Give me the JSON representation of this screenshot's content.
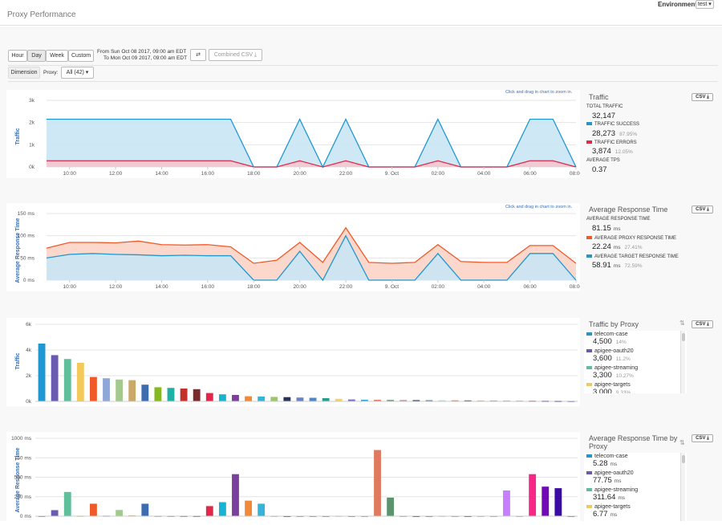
{
  "header": {
    "title": "Proxy Performance",
    "env_label": "Environment",
    "env_value": "test ▾"
  },
  "toolbar": {
    "ranges": [
      "Hour",
      "Day",
      "Week",
      "Custom"
    ],
    "from": "From  Sun Oct 08 2017, 09:00 am EDT",
    "to": "To Mon Oct 09 2017, 09:00 am EDT",
    "swap_icon": "⇄",
    "csv_combined": "Combined CSV ⤓",
    "dimension": "Dimension",
    "proxy_label": "Proxy:",
    "proxy_value": "All (42) ▾"
  },
  "hint": "Click and drag in chart to zoom in.",
  "time_ticks": [
    "10:00",
    "12:00",
    "14:00",
    "16:00",
    "18:00",
    "20:00",
    "22:00",
    "9. Oct",
    "02:00",
    "04:00",
    "06:00",
    "08:00"
  ],
  "traffic": {
    "ylabel": "Traffic",
    "yticks": [
      "3k",
      "2k",
      "1k",
      "0k"
    ],
    "title": "Traffic",
    "csv": "CSV ⤓",
    "total_label": "TOTAL TRAFFIC",
    "total": "32,147",
    "success_label": "TRAFFIC SUCCESS",
    "success": "28,273",
    "success_pct": "87.95%",
    "errors_label": "TRAFFIC ERRORS",
    "errors": "3,874",
    "errors_pct": "12.05%",
    "tps_label": "AVERAGE TPS",
    "tps": "0.37"
  },
  "response": {
    "ylabel": "Average Response Time",
    "yticks": [
      "150 ms",
      "100 ms",
      "50 ms",
      "0 ms"
    ],
    "title": "Average Response Time",
    "csv": "CSV ⤓",
    "avg_label": "AVERAGE RESPONSE TIME",
    "avg": "81.15",
    "avg_unit": "ms",
    "proxy_label": "AVERAGE PROXY RESPONSE TIME",
    "proxy": "22.24",
    "proxy_unit": "ms",
    "proxy_pct": "27.41%",
    "target_label": "AVERAGE TARGET RESPONSE TIME",
    "target": "58.91",
    "target_unit": "ms",
    "target_pct": "72.59%"
  },
  "by_proxy": {
    "ylabel": "Traffic",
    "yticks": [
      "6k",
      "4k",
      "2k",
      "0k"
    ],
    "title": "Traffic by Proxy",
    "csv": "CSV ⤓",
    "items": [
      {
        "name": "telecom-case",
        "value": "4,500",
        "pct": "14%"
      },
      {
        "name": "apigee-oauth20",
        "value": "3,600",
        "pct": "11.2%"
      },
      {
        "name": "apigee-streaming",
        "value": "3,300",
        "pct": "10.27%"
      },
      {
        "name": "apigee-targets",
        "value": "3,000",
        "pct": "9.33%"
      }
    ]
  },
  "rt_by_proxy": {
    "ylabel": "Average Response Time",
    "yticks": [
      "1000 ms",
      "750 ms",
      "500 ms",
      "250 ms",
      "0 ms"
    ],
    "title": "Average Response Time by Proxy",
    "csv": "CSV ⤓",
    "items": [
      {
        "name": "telecom-case",
        "value": "5.28",
        "unit": "ms"
      },
      {
        "name": "apigee-oauth20",
        "value": "77.75",
        "unit": "ms"
      },
      {
        "name": "apigee-streaming",
        "value": "311.64",
        "unit": "ms"
      },
      {
        "name": "apigee-targets",
        "value": "6.77",
        "unit": "ms"
      }
    ]
  },
  "colors": {
    "success": "#1f97d3",
    "error": "#e0294a",
    "proxy": "#f05a28",
    "target": "#1f97d3",
    "accent": "#3a6eb5"
  },
  "chart_data": [
    {
      "type": "area",
      "title": "Traffic",
      "ylabel": "Traffic",
      "ylim": [
        0,
        3000
      ],
      "x": [
        "09:00",
        "10:00",
        "11:00",
        "12:00",
        "13:00",
        "14:00",
        "15:00",
        "16:00",
        "17:00",
        "18:00",
        "19:00",
        "20:00",
        "21:00",
        "22:00",
        "23:00",
        "00:00",
        "01:00",
        "02:00",
        "03:00",
        "04:00",
        "05:00",
        "06:00",
        "07:00",
        "08:00"
      ],
      "series": [
        {
          "name": "TRAFFIC SUCCESS",
          "values": [
            2150,
            2150,
            2150,
            2150,
            2150,
            2150,
            2150,
            2150,
            2150,
            0,
            0,
            2150,
            0,
            2150,
            0,
            0,
            0,
            2150,
            0,
            0,
            0,
            2150,
            2150,
            0
          ]
        },
        {
          "name": "TRAFFIC ERRORS",
          "values": [
            280,
            280,
            280,
            280,
            280,
            280,
            280,
            280,
            280,
            0,
            0,
            280,
            0,
            280,
            0,
            0,
            0,
            280,
            0,
            0,
            0,
            280,
            280,
            0
          ]
        }
      ]
    },
    {
      "type": "area",
      "title": "Average Response Time",
      "ylabel": "Average Response Time",
      "ylim": [
        0,
        150
      ],
      "x": [
        "09:00",
        "10:00",
        "11:00",
        "12:00",
        "13:00",
        "14:00",
        "15:00",
        "16:00",
        "17:00",
        "18:00",
        "19:00",
        "20:00",
        "21:00",
        "22:00",
        "23:00",
        "00:00",
        "01:00",
        "02:00",
        "03:00",
        "04:00",
        "05:00",
        "06:00",
        "07:00",
        "08:00"
      ],
      "series": [
        {
          "name": "AVERAGE PROXY RESPONSE TIME",
          "values": [
            72,
            85,
            85,
            84,
            88,
            80,
            79,
            80,
            75,
            38,
            45,
            85,
            40,
            118,
            40,
            38,
            40,
            80,
            42,
            40,
            40,
            78,
            78,
            38
          ]
        },
        {
          "name": "AVERAGE TARGET RESPONSE TIME",
          "values": [
            50,
            58,
            60,
            58,
            57,
            55,
            56,
            55,
            55,
            0,
            0,
            65,
            0,
            100,
            0,
            0,
            0,
            60,
            0,
            0,
            0,
            60,
            60,
            0
          ]
        }
      ]
    },
    {
      "type": "bar",
      "title": "Traffic by Proxy",
      "ylabel": "Traffic",
      "ylim": [
        0,
        6000
      ],
      "categories": [
        "telecom-case",
        "apigee-oauth20",
        "apigee-streaming",
        "apigee-targets",
        "",
        "",
        "",
        "",
        "",
        "",
        "",
        "",
        "",
        "",
        "",
        "",
        "",
        "",
        "",
        "",
        "",
        "",
        "",
        "",
        "",
        "",
        "",
        "",
        "",
        "",
        "",
        "",
        "",
        "",
        "",
        "",
        "",
        "",
        "",
        "",
        "",
        ""
      ],
      "values": [
        4500,
        3600,
        3300,
        3000,
        1900,
        1800,
        1700,
        1650,
        1300,
        1100,
        1050,
        1000,
        950,
        650,
        550,
        500,
        400,
        380,
        350,
        330,
        300,
        280,
        250,
        200,
        150,
        130,
        120,
        110,
        100,
        95,
        90,
        85,
        80,
        75,
        70,
        70,
        65,
        60,
        55,
        50,
        45,
        40
      ]
    },
    {
      "type": "bar",
      "title": "Average Response Time by Proxy",
      "ylabel": "Average Response Time",
      "ylim": [
        0,
        1000
      ],
      "categories": [
        "telecom-case",
        "apigee-oauth20",
        "apigee-streaming",
        "apigee-targets",
        "",
        "",
        "",
        "",
        "",
        "",
        "",
        "",
        "",
        "",
        "",
        "",
        "",
        "",
        "",
        "",
        "",
        "",
        "",
        "",
        "",
        "",
        "",
        "",
        "",
        "",
        "",
        "",
        "",
        "",
        "",
        "",
        "",
        "",
        "",
        "",
        "",
        ""
      ],
      "values": [
        5.28,
        77.75,
        311.64,
        6.77,
        160,
        8,
        80,
        10,
        160,
        6,
        6,
        6,
        6,
        130,
        180,
        540,
        200,
        160,
        6,
        5,
        5,
        5,
        5,
        5,
        5,
        5,
        850,
        240,
        6,
        5,
        5,
        5,
        5,
        5,
        5,
        5,
        330,
        5,
        540,
        380,
        360,
        5
      ]
    }
  ]
}
